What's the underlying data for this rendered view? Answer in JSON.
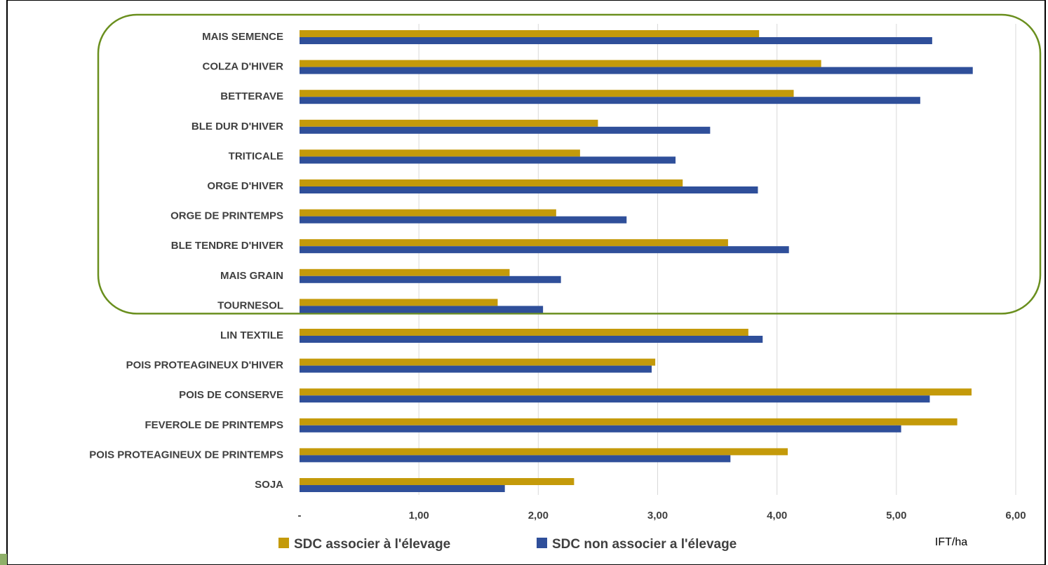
{
  "chart_data": {
    "type": "bar",
    "orientation": "horizontal",
    "categories": [
      "MAIS SEMENCE",
      "COLZA D'HIVER",
      "BETTERAVE",
      "BLE DUR D'HIVER",
      "TRITICALE",
      "ORGE D'HIVER",
      "ORGE DE PRINTEMPS",
      "BLE TENDRE D'HIVER",
      "MAIS GRAIN",
      "TOURNESOL",
      "LIN TEXTILE",
      "POIS PROTEAGINEUX D'HIVER",
      "POIS DE CONSERVE",
      "FEVEROLE DE PRINTEMPS",
      "POIS PROTEAGINEUX DE PRINTEMPS",
      "SOJA"
    ],
    "series": [
      {
        "name": "SDC associer à l'élevage",
        "color": "#C49A0A",
        "values": [
          3.85,
          4.37,
          4.14,
          2.5,
          2.35,
          3.21,
          2.15,
          3.59,
          1.76,
          1.66,
          3.76,
          2.98,
          5.63,
          5.51,
          4.09,
          2.3
        ]
      },
      {
        "name": "SDC non associer a l'élevage",
        "color": "#2F4F9A",
        "values": [
          5.3,
          5.64,
          5.2,
          3.44,
          3.15,
          3.84,
          2.74,
          4.1,
          2.19,
          2.04,
          3.88,
          2.95,
          5.28,
          5.04,
          3.61,
          1.72
        ]
      }
    ],
    "xlim": [
      0,
      6
    ],
    "x_ticks": [
      "-",
      "1,00",
      "2,00",
      "3,00",
      "4,00",
      "5,00",
      "6,00"
    ],
    "xlabel": "IFT/ha",
    "ylabel": "",
    "grid": "vertical",
    "legend_position": "bottom",
    "highlight_box": {
      "color": "#6A8F1E",
      "from_category": "MAIS SEMENCE",
      "to_category": "TOURNESOL"
    }
  }
}
